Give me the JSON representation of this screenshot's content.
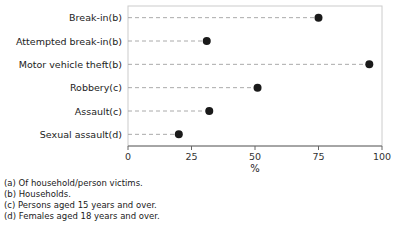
{
  "chart_data": {
    "type": "lollipop",
    "orientation": "horizontal",
    "categories": [
      "Break-in(b)",
      "Attempted break-in(b)",
      "Motor vehicle theft(b)",
      "Robbery(c)",
      "Assault(c)",
      "Sexual assault(d)"
    ],
    "values": [
      75,
      31,
      95,
      51,
      32,
      20
    ],
    "xlim": [
      0,
      100
    ],
    "xticks": [
      0,
      25,
      50,
      75,
      100
    ],
    "xlabel": "%",
    "color": "#1a1a1a",
    "line_style": "dashed",
    "marker": "circle",
    "grid": false,
    "annotations": [
      "(a)  Of household/person victims.",
      "(b)  Households.",
      "(c)  Persons aged 15 years and over.",
      "(d)  Females aged 18 years and over."
    ]
  }
}
